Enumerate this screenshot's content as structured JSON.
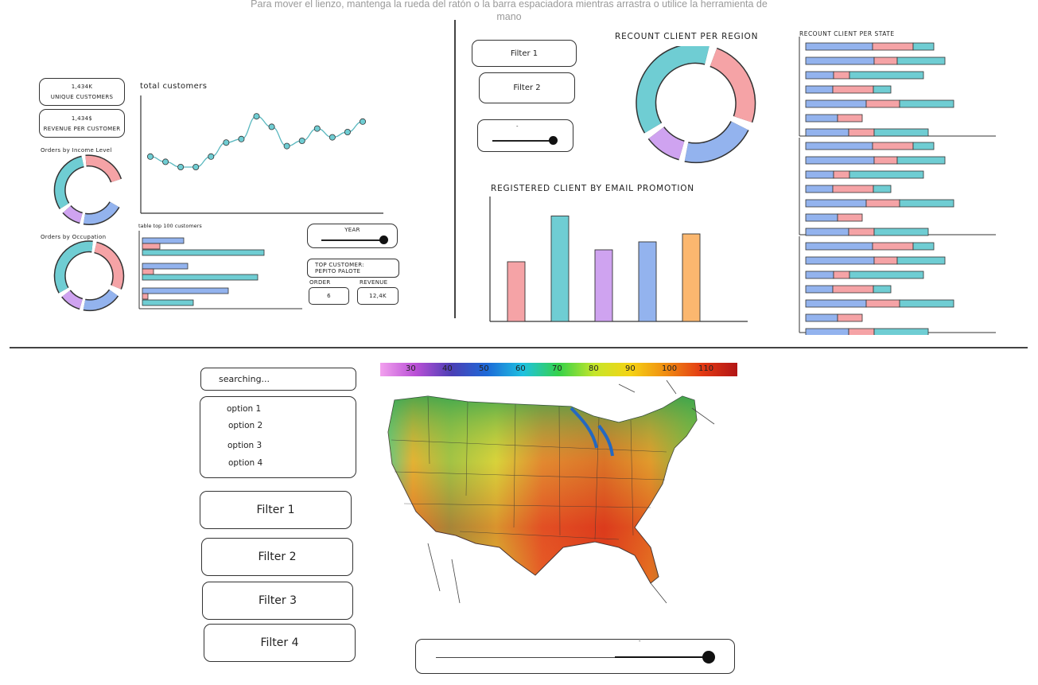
{
  "canvas_hint": "Para mover el lienzo, mantenga la rueda del ratón o la barra espaciadora mientras arrastra o utilice la herramienta de mano",
  "colors": {
    "teal": "#6fcdd3",
    "pink": "#f5a3a6",
    "purple": "#cfa3f0",
    "blue": "#93b3ee",
    "orange": "#fbb76f",
    "ink": "#333333"
  },
  "dashboard1": {
    "kpi1": {
      "value": "1,434K",
      "label": "UNIQUE CUSTOMERS"
    },
    "kpi2": {
      "value": "1,434$",
      "label": "REVENUE PER CUSTOMER"
    },
    "donut1_title": "Orders by Income Level",
    "donut2_title": "Orders by Occupation",
    "line_title": "total customers",
    "line_values": [
      31,
      28,
      25,
      25,
      31,
      39,
      41,
      54,
      48,
      37,
      40,
      47,
      42,
      45,
      51
    ],
    "table_title": "table top 100 customers",
    "year_label": "YEAR",
    "top_customer_label": "TOP CUSTOMER:",
    "top_customer_name": "PEPITO PALOTE",
    "order_label": "ORDER",
    "order_value": "6",
    "revenue_label": "REVENUE",
    "revenue_value": "12,4K"
  },
  "dashboard2": {
    "filter1": "Filter 1",
    "filter2": "Filter 2",
    "slider_label": "-",
    "region_title": "RECOUNT CLIENT PER REGION",
    "state_title": "RECOUNT CLIENT PER STATE",
    "email_title": "REGISTERED CLIENT BY EMAIL PROMOTION",
    "email_bars": [
      {
        "value": 30,
        "color": "#f5a3a6"
      },
      {
        "value": 53,
        "color": "#6fcdd3"
      },
      {
        "value": 36,
        "color": "#cfa3f0"
      },
      {
        "value": 40,
        "color": "#93b3ee"
      },
      {
        "value": 44,
        "color": "#fbb76f"
      }
    ]
  },
  "dashboard3": {
    "search_placeholder": "searching...",
    "options": [
      "option 1",
      "option 2",
      "option 3",
      "option 4"
    ],
    "filters": [
      "Filter 1",
      "Filter 2",
      "Filter 3",
      "Filter 4"
    ],
    "scale_ticks": [
      "30",
      "40",
      "50",
      "60",
      "70",
      "80",
      "90",
      "100",
      "110"
    ],
    "slider_label": "-"
  }
}
